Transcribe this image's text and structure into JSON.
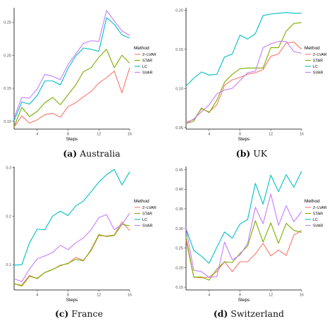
{
  "chart_data": [
    {
      "type": "line",
      "caption_letter": "(a)",
      "caption_text": "Australia",
      "xlabel": "Steps",
      "ylabel": "",
      "xlim": [
        1,
        16
      ],
      "ylim": [
        0.088,
        0.272
      ],
      "x_ticks": [
        4,
        8,
        12,
        16
      ],
      "y_ticks": [
        0.1,
        0.15,
        0.2,
        0.25
      ],
      "y_tick_labels": [
        "0.10",
        "0.15",
        "0.20",
        "0.25"
      ],
      "x": [
        1,
        2,
        3,
        4,
        5,
        6,
        7,
        8,
        9,
        10,
        11,
        12,
        13,
        14,
        15,
        16
      ],
      "legend": {
        "title": "Method",
        "placement": "right"
      },
      "grid": false,
      "series": [
        {
          "name": "2−LVAR",
          "color": "#F8766D",
          "values": [
            0.091,
            0.108,
            0.097,
            0.102,
            0.11,
            0.112,
            0.106,
            0.122,
            0.128,
            0.137,
            0.145,
            0.158,
            0.166,
            0.176,
            0.143,
            0.181
          ]
        },
        {
          "name": "STAR",
          "color": "#7CAE00",
          "values": [
            0.092,
            0.121,
            0.107,
            0.115,
            0.128,
            0.136,
            0.125,
            0.14,
            0.155,
            0.175,
            0.181,
            0.197,
            0.209,
            0.181,
            0.2,
            0.188
          ]
        },
        {
          "name": "LC",
          "color": "#00BFC4",
          "values": [
            0.101,
            0.129,
            0.126,
            0.139,
            0.161,
            0.161,
            0.155,
            0.18,
            0.199,
            0.211,
            0.209,
            0.206,
            0.257,
            0.247,
            0.231,
            0.226
          ]
        },
        {
          "name": "SVAR",
          "color": "#C77CFF",
          "values": [
            0.105,
            0.136,
            0.135,
            0.149,
            0.171,
            0.168,
            0.163,
            0.186,
            0.202,
            0.218,
            0.222,
            0.221,
            0.268,
            0.252,
            0.237,
            0.23
          ]
        }
      ]
    },
    {
      "type": "line",
      "caption_letter": "(b)",
      "caption_text": "UK",
      "xlabel": "Steps",
      "ylabel": "",
      "xlim": [
        1,
        16
      ],
      "ylim": [
        0.048,
        0.203
      ],
      "x_ticks": [
        4,
        8,
        12,
        16
      ],
      "y_ticks": [
        0.05,
        0.1,
        0.15,
        0.2
      ],
      "y_tick_labels": [
        "0.05",
        "0.10",
        "0.15",
        "0.20"
      ],
      "x": [
        1,
        2,
        3,
        4,
        5,
        6,
        7,
        8,
        9,
        10,
        11,
        12,
        13,
        14,
        15,
        16
      ],
      "legend": {
        "title": "Method",
        "placement": "right"
      },
      "grid": false,
      "series": [
        {
          "name": "2−LVAR",
          "color": "#F8766D",
          "values": [
            0.057,
            0.06,
            0.074,
            0.07,
            0.079,
            0.104,
            0.111,
            0.114,
            0.118,
            0.12,
            0.124,
            0.141,
            0.144,
            0.158,
            0.159,
            0.15
          ]
        },
        {
          "name": "STAR",
          "color": "#7CAE00",
          "values": [
            0.055,
            0.058,
            0.075,
            0.069,
            0.085,
            0.108,
            0.118,
            0.125,
            0.126,
            0.126,
            0.126,
            0.152,
            0.152,
            0.173,
            0.183,
            0.184
          ]
        },
        {
          "name": "LC",
          "color": "#00BFC4",
          "values": [
            0.103,
            0.113,
            0.121,
            0.117,
            0.118,
            0.14,
            0.144,
            0.168,
            0.163,
            0.17,
            0.193,
            0.195,
            0.196,
            0.197,
            0.196,
            0.196
          ]
        },
        {
          "name": "SVAR",
          "color": "#C77CFF",
          "values": [
            0.055,
            0.061,
            0.07,
            0.079,
            0.093,
            0.098,
            0.1,
            0.11,
            0.12,
            0.122,
            0.152,
            0.157,
            0.16,
            0.16,
            0.147,
            0.145
          ]
        }
      ]
    },
    {
      "type": "line",
      "caption_letter": "(c)",
      "caption_text": "France",
      "xlabel": "Steps",
      "ylabel": "",
      "xlim": [
        1,
        16
      ],
      "ylim": [
        0.048,
        0.302
      ],
      "x_ticks": [
        4,
        8,
        12,
        16
      ],
      "y_ticks": [
        0.1,
        0.2,
        0.3
      ],
      "y_tick_labels": [
        "0.1",
        "0.2",
        "0.3"
      ],
      "x": [
        1,
        2,
        3,
        4,
        5,
        6,
        7,
        8,
        9,
        10,
        11,
        12,
        13,
        14,
        15,
        16
      ],
      "legend": {
        "title": "Method",
        "placement": "right"
      },
      "grid": false,
      "series": [
        {
          "name": "2−LVAR",
          "color": "#F8766D",
          "values": [
            0.06,
            0.058,
            0.078,
            0.071,
            0.084,
            0.09,
            0.099,
            0.102,
            0.115,
            0.109,
            0.129,
            0.16,
            0.159,
            0.161,
            0.188,
            0.17
          ]
        },
        {
          "name": "STAR",
          "color": "#7CAE00",
          "values": [
            0.061,
            0.056,
            0.076,
            0.072,
            0.084,
            0.09,
            0.098,
            0.103,
            0.111,
            0.108,
            0.131,
            0.162,
            0.158,
            0.16,
            0.183,
            0.18
          ]
        },
        {
          "name": "LC",
          "color": "#00BFC4",
          "values": [
            0.099,
            0.1,
            0.145,
            0.173,
            0.172,
            0.2,
            0.21,
            0.201,
            0.221,
            0.231,
            0.25,
            0.27,
            0.285,
            0.296,
            0.264,
            0.291
          ]
        },
        {
          "name": "SVAR",
          "color": "#C77CFF",
          "values": [
            0.071,
            0.065,
            0.091,
            0.112,
            0.118,
            0.125,
            0.14,
            0.131,
            0.145,
            0.155,
            0.172,
            0.197,
            0.203,
            0.172,
            0.183,
            0.206
          ]
        }
      ]
    },
    {
      "type": "line",
      "caption_letter": "(d)",
      "caption_text": "Switzerland",
      "xlabel": "Steps",
      "ylabel": "",
      "xlim": [
        1,
        16
      ],
      "ylim": [
        0.143,
        0.458
      ],
      "x_ticks": [
        4,
        8,
        12,
        16
      ],
      "y_ticks": [
        0.15,
        0.2,
        0.25,
        0.3,
        0.35,
        0.4,
        0.45
      ],
      "y_tick_labels": [
        "0.15",
        "0.20",
        "0.25",
        "0.30",
        "0.35",
        "0.40",
        "0.45"
      ],
      "x": [
        1,
        2,
        3,
        4,
        5,
        6,
        7,
        8,
        9,
        10,
        11,
        12,
        13,
        14,
        15,
        16
      ],
      "legend": {
        "title": "Method",
        "placement": "right"
      },
      "grid": false,
      "series": [
        {
          "name": "2−LVAR",
          "color": "#F8766D",
          "values": [
            0.27,
            0.176,
            0.174,
            0.176,
            0.19,
            0.215,
            0.19,
            0.215,
            0.215,
            0.235,
            0.262,
            0.23,
            0.245,
            0.231,
            0.283,
            0.295
          ]
        },
        {
          "name": "STAR",
          "color": "#7CAE00",
          "values": [
            0.278,
            0.176,
            0.176,
            0.168,
            0.196,
            0.215,
            0.213,
            0.236,
            0.255,
            0.32,
            0.265,
            0.314,
            0.262,
            0.313,
            0.295,
            0.29
          ]
        },
        {
          "name": "LC",
          "color": "#00BFC4",
          "values": [
            0.3,
            0.244,
            0.229,
            0.211,
            0.252,
            0.291,
            0.275,
            0.311,
            0.323,
            0.415,
            0.362,
            0.436,
            0.394,
            0.437,
            0.405,
            0.446
          ]
        },
        {
          "name": "SVAR",
          "color": "#C77CFF",
          "values": [
            0.302,
            0.193,
            0.19,
            0.175,
            0.177,
            0.265,
            0.22,
            0.232,
            0.262,
            0.354,
            0.312,
            0.388,
            0.308,
            0.358,
            0.317,
            0.343
          ]
        }
      ]
    }
  ]
}
